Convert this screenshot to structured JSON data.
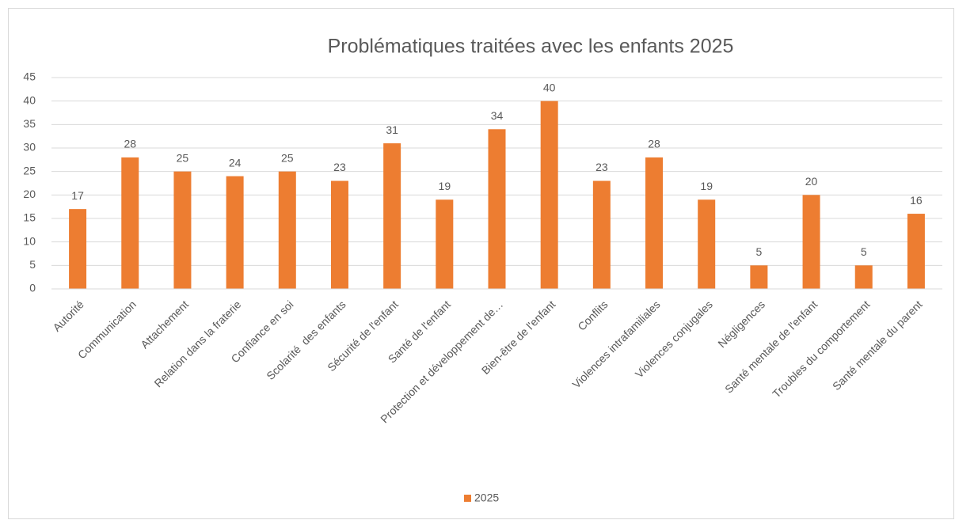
{
  "chart_data": {
    "type": "bar",
    "title": "Problématiques traitées avec les enfants 2025",
    "categories": [
      "Autorité",
      "Communication",
      "Attachement",
      "Relation dans la fraterie",
      "Confiance en soi",
      "Scolarité  des enfants",
      "Sécurité de l'enfant",
      "Santé de l'enfant",
      "Protection et développement de…",
      "Bien-être de l'enfant",
      "Conflits",
      "Violences intrafamiliales",
      "Violences conjugales",
      "Négligences",
      "Santé mentale de l'enfant",
      "Troubles du comportement",
      "Santé mentale du parent"
    ],
    "series": [
      {
        "name": "2025",
        "color": "#ed7d31",
        "values": [
          17,
          28,
          25,
          24,
          25,
          23,
          31,
          19,
          34,
          40,
          23,
          28,
          19,
          5,
          20,
          5,
          16
        ]
      }
    ],
    "ylim": [
      0,
      45
    ],
    "yticks": [
      0,
      5,
      10,
      15,
      20,
      25,
      30,
      35,
      40,
      45
    ],
    "grid": true,
    "legend": "bottom"
  }
}
